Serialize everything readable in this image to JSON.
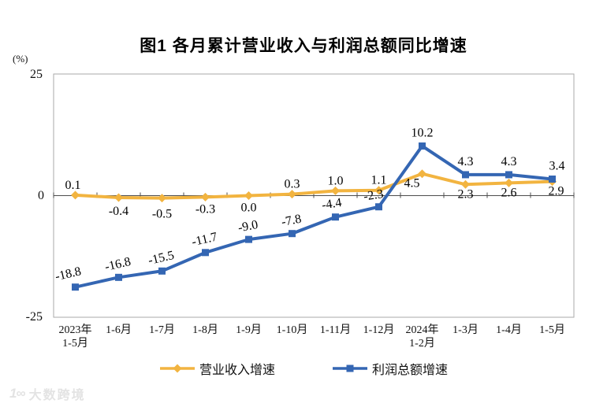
{
  "watermark": {
    "logo": "1∞",
    "text": "大数跨境"
  },
  "chart_data": {
    "type": "line",
    "title": "图1  各月累计营业收入与利润总额同比增速",
    "ylabel": "(%)",
    "ylim": [
      -25,
      25
    ],
    "yticks": [
      25,
      0,
      -25
    ],
    "ytick_labels": [
      "25",
      "0",
      "-25"
    ],
    "grid": false,
    "legend_position": "bottom",
    "categories": [
      [
        "2023年",
        "1-5月"
      ],
      [
        "1-6月"
      ],
      [
        "1-7月"
      ],
      [
        "1-8月"
      ],
      [
        "1-9月"
      ],
      [
        "1-10月"
      ],
      [
        "1-11月"
      ],
      [
        "1-12月"
      ],
      [
        "2024年",
        "1-2月"
      ],
      [
        "1-3月"
      ],
      [
        "1-4月"
      ],
      [
        "1-5月"
      ]
    ],
    "series": [
      {
        "name": "营业收入增速",
        "marker": "diamond",
        "color": "#F2B440",
        "values": [
          0.1,
          -0.4,
          -0.5,
          -0.3,
          0.0,
          0.3,
          1.0,
          1.1,
          4.5,
          2.3,
          2.6,
          2.9
        ],
        "labels": [
          "0.1",
          "-0.4",
          "-0.5",
          "-0.3",
          "0.0",
          "0.3",
          "1.0",
          "1.1",
          "4.5",
          "2.3",
          "2.6",
          "2.9"
        ]
      },
      {
        "name": "利润总额增速",
        "marker": "square",
        "color": "#3466B3",
        "values": [
          -18.8,
          -16.8,
          -15.5,
          -11.7,
          -9.0,
          -7.8,
          -4.4,
          -2.3,
          10.2,
          4.3,
          4.3,
          3.4
        ],
        "labels": [
          "-18.8",
          "-16.8",
          "-15.5",
          "-11.7",
          "-9.0",
          "-7.8",
          "-4.4",
          "-2.3",
          "10.2",
          "4.3",
          "4.3",
          "3.4"
        ]
      }
    ]
  }
}
